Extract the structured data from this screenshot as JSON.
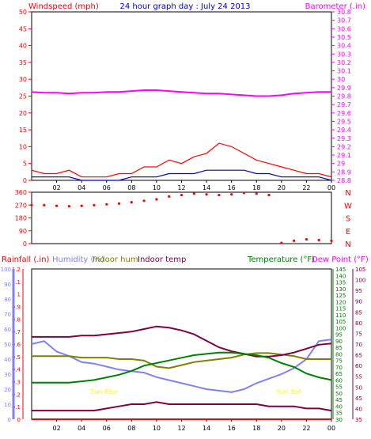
{
  "title": "24 hour graph day : July 24 2013",
  "x_ticks": [
    "02",
    "04",
    "06",
    "08",
    "10",
    "12",
    "14",
    "16",
    "18",
    "20",
    "22",
    "00"
  ],
  "colors": {
    "wind": "#ff0000",
    "gust": "#0000cc",
    "baro": "#ff00ff",
    "rain": "#ff0000",
    "hum": "#8080ff",
    "inhum": "#808000",
    "intemp": "#800040",
    "temp": "#008000",
    "dew": "#800040",
    "solar": "#ffff00",
    "uv": "#ff00ff",
    "frame": "#000000",
    "panel_bg": "#ffffff"
  },
  "chart_data": [
    {
      "type": "line",
      "title": "",
      "left_axis": {
        "label": "Windspeed (mph)",
        "range": [
          0,
          50
        ],
        "ticks": [
          "0",
          "5",
          "10",
          "15",
          "20",
          "25",
          "30",
          "35",
          "40",
          "45",
          "50"
        ]
      },
      "right_axis": {
        "label": "Barometer (.in)",
        "range": [
          28.8,
          30.8
        ],
        "ticks": [
          "28.8",
          "28.9",
          "29",
          "29.1",
          "29.2",
          "29.3",
          "29.4",
          "29.5",
          "29.6",
          "29.7",
          "29.8",
          "29.9",
          "30",
          "30.1",
          "30.2",
          "30.3",
          "30.4",
          "30.5",
          "30.6",
          "30.7",
          "30.8"
        ]
      },
      "x_hours": [
        0,
        1,
        2,
        3,
        4,
        5,
        6,
        7,
        8,
        9,
        10,
        11,
        12,
        13,
        14,
        15,
        16,
        17,
        18,
        19,
        20,
        21,
        22,
        23,
        24
      ],
      "series": [
        {
          "key": "wind",
          "axis": "left",
          "values": [
            3,
            2,
            2,
            3,
            1,
            1,
            1,
            2,
            2,
            4,
            4,
            6,
            5,
            7,
            8,
            11,
            10,
            8,
            6,
            5,
            4,
            3,
            2,
            2,
            1
          ]
        },
        {
          "key": "gust",
          "axis": "left",
          "values": [
            1,
            1,
            1,
            1,
            0,
            0,
            0,
            0,
            1,
            1,
            1,
            2,
            2,
            2,
            3,
            3,
            3,
            3,
            2,
            2,
            1,
            1,
            1,
            1,
            0
          ]
        },
        {
          "key": "baro",
          "axis": "right",
          "values": [
            29.85,
            29.84,
            29.84,
            29.83,
            29.84,
            29.84,
            29.85,
            29.85,
            29.86,
            29.87,
            29.87,
            29.86,
            29.85,
            29.84,
            29.83,
            29.83,
            29.82,
            29.81,
            29.8,
            29.8,
            29.81,
            29.83,
            29.84,
            29.85,
            29.85
          ]
        }
      ]
    },
    {
      "type": "scatter",
      "title": "",
      "left_axis": {
        "range": [
          0,
          360
        ],
        "ticks": [
          "0",
          "90",
          "180",
          "270",
          "360"
        ]
      },
      "right_axis": {
        "compass_labels": [
          "N",
          "W",
          "S",
          "E",
          "N"
        ]
      },
      "series": [
        {
          "key": "wind",
          "name": "Wind direction",
          "values_deg": [
            270,
            270,
            265,
            262,
            265,
            270,
            275,
            280,
            290,
            300,
            310,
            330,
            340,
            350,
            345,
            340,
            345,
            355,
            350,
            340,
            5,
            20,
            30,
            25,
            20
          ]
        }
      ]
    },
    {
      "type": "line",
      "title": "",
      "legend": [
        "Rainfall (.in)",
        "Humidity (%)",
        "Indoor hum",
        "Indoor temp",
        "Temperature (°F)",
        "Dew Point (°F)"
      ],
      "axes": {
        "rain": {
          "range": [
            0,
            1.2
          ],
          "ticks": [
            "0",
            "0.1",
            "0.2",
            "0.3",
            "0.4",
            "0.5",
            "0.6",
            "0.7",
            "0.8",
            "0.9",
            "1",
            "1.1",
            "1.2"
          ]
        },
        "hum": {
          "range": [
            0,
            100
          ],
          "ticks": [
            "0",
            "10",
            "20",
            "30",
            "40",
            "50",
            "60",
            "70",
            "80",
            "90",
            "100"
          ]
        },
        "temp": {
          "range": [
            30,
            145
          ],
          "ticks": [
            "30",
            "35",
            "40",
            "45",
            "50",
            "55",
            "60",
            "65",
            "70",
            "75",
            "80",
            "85",
            "90",
            "95",
            "100",
            "105",
            "110",
            "115",
            "120",
            "125",
            "130",
            "135",
            "140",
            "145"
          ]
        },
        "dew": {
          "range": [
            35,
            105
          ],
          "ticks": [
            "35",
            "40",
            "45",
            "50",
            "55",
            "60",
            "65",
            "70",
            "75",
            "80",
            "85",
            "90",
            "95",
            "100",
            "105"
          ]
        }
      },
      "annotations": [
        {
          "text": "Sun Rise",
          "x_hour": 5.8
        },
        {
          "text": "Sun Set",
          "x_hour": 20.6
        }
      ],
      "x_hours": [
        0,
        1,
        2,
        3,
        4,
        5,
        6,
        7,
        8,
        9,
        10,
        11,
        12,
        13,
        14,
        15,
        16,
        17,
        18,
        19,
        20,
        21,
        22,
        23,
        24
      ],
      "series": [
        {
          "key": "rain",
          "values": [
            0,
            0,
            0,
            0,
            0,
            0,
            0,
            0,
            0,
            0,
            0,
            0,
            0,
            0,
            0,
            0,
            0,
            0,
            0,
            0,
            0,
            0,
            0,
            0,
            0
          ]
        },
        {
          "key": "hum",
          "values": [
            50,
            52,
            45,
            42,
            38,
            37,
            35,
            33,
            32,
            31,
            28,
            26,
            24,
            22,
            20,
            19,
            18,
            20,
            24,
            27,
            30,
            34,
            40,
            52,
            53
          ]
        },
        {
          "key": "inhum",
          "values": [
            42,
            42,
            42,
            42,
            41,
            41,
            41,
            40,
            40,
            39,
            35,
            34,
            36,
            38,
            39,
            40,
            41,
            43,
            44,
            44,
            43,
            42,
            40,
            40,
            40
          ]
        },
        {
          "key": "intemp",
          "values": [
            93,
            93,
            93,
            93,
            94,
            94,
            95,
            96,
            97,
            99,
            101,
            100,
            98,
            95,
            90,
            85,
            82,
            80,
            78,
            78,
            79,
            81,
            84,
            87,
            88
          ]
        },
        {
          "key": "temp",
          "values": [
            58,
            58,
            58,
            58,
            59,
            60,
            62,
            64,
            67,
            71,
            73,
            75,
            77,
            79,
            80,
            81,
            81,
            80,
            79,
            77,
            73,
            70,
            65,
            62,
            60
          ]
        },
        {
          "key": "dew",
          "values": [
            39,
            39,
            39,
            39,
            39,
            39,
            40,
            41,
            42,
            42,
            43,
            42,
            42,
            42,
            42,
            42,
            42,
            42,
            42,
            41,
            41,
            41,
            40,
            40,
            39
          ]
        }
      ]
    }
  ]
}
